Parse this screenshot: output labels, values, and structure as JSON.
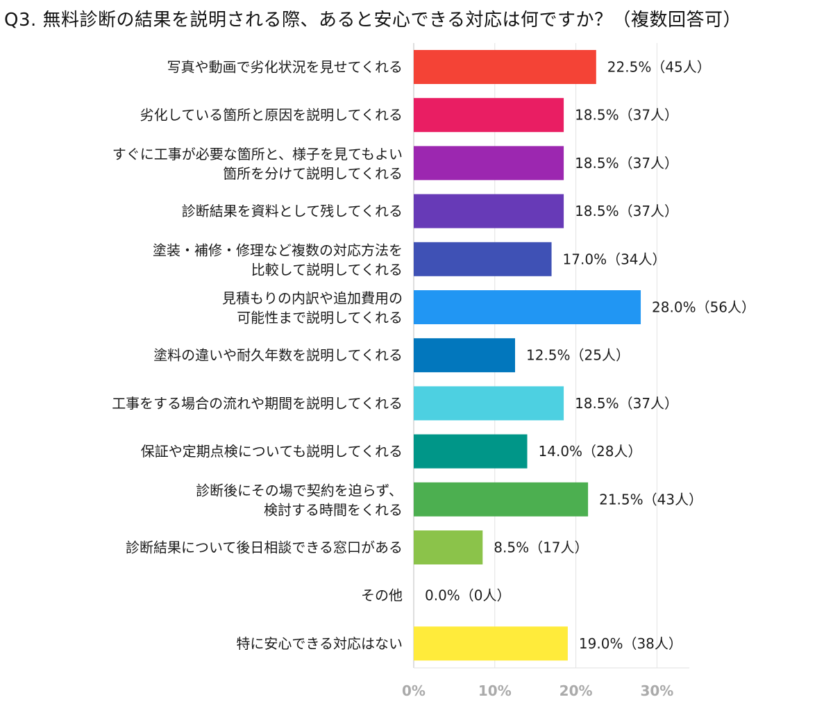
{
  "chart_data": {
    "type": "bar",
    "orientation": "horizontal",
    "title": "Q3. 無料診断の結果を説明される際、あると安心できる対応は何ですか？（複数回答可）",
    "categories": [
      [
        "写真や動画で劣化状況を見せてくれる"
      ],
      [
        "劣化している箇所と原因を説明してくれる"
      ],
      [
        "すぐに工事が必要な箇所と、様子を見てもよい",
        "箇所を分けて説明してくれる"
      ],
      [
        "診断結果を資料として残してくれる"
      ],
      [
        "塗装・補修・修理など複数の対応方法を",
        "比較して説明してくれる"
      ],
      [
        "見積もりの内訳や追加費用の",
        "可能性まで説明してくれる"
      ],
      [
        "塗料の違いや耐久年数を説明してくれる"
      ],
      [
        "工事をする場合の流れや期間を説明してくれる"
      ],
      [
        "保証や定期点検についても説明してくれる"
      ],
      [
        "診断後にその場で契約を迫らず、",
        "検討する時間をくれる"
      ],
      [
        "診断結果について後日相談できる窓口がある"
      ],
      [
        "その他"
      ],
      [
        "特に安心できる対応はない"
      ]
    ],
    "values": [
      22.5,
      18.5,
      18.5,
      18.5,
      17.0,
      28.0,
      12.5,
      18.5,
      14.0,
      21.5,
      8.5,
      0.0,
      19.0
    ],
    "data_labels": [
      "22.5%（45人）",
      "18.5%（37人）",
      "18.5%（37人）",
      "18.5%（37人）",
      "17.0%（34人）",
      "28.0%（56人）",
      "12.5%（25人）",
      "18.5%（37人）",
      "14.0%（28人）",
      "21.5%（43人）",
      "8.5%（17人）",
      "0.0%（0人）",
      "19.0%（38人）"
    ],
    "colors": [
      "#f44336",
      "#e91e63",
      "#9c27b0",
      "#673ab7",
      "#3f51b5",
      "#2196f3",
      "#0277bd",
      "#4dd0e1",
      "#009688",
      "#4caf50",
      "#8bc34a",
      "#cddc39",
      "#ffeb3b"
    ],
    "x_ticks": [
      "0%",
      "10%",
      "20%",
      "30%"
    ],
    "tick_values": [
      0,
      10,
      20,
      30
    ],
    "xlim": [
      0,
      33
    ],
    "grid": true
  }
}
